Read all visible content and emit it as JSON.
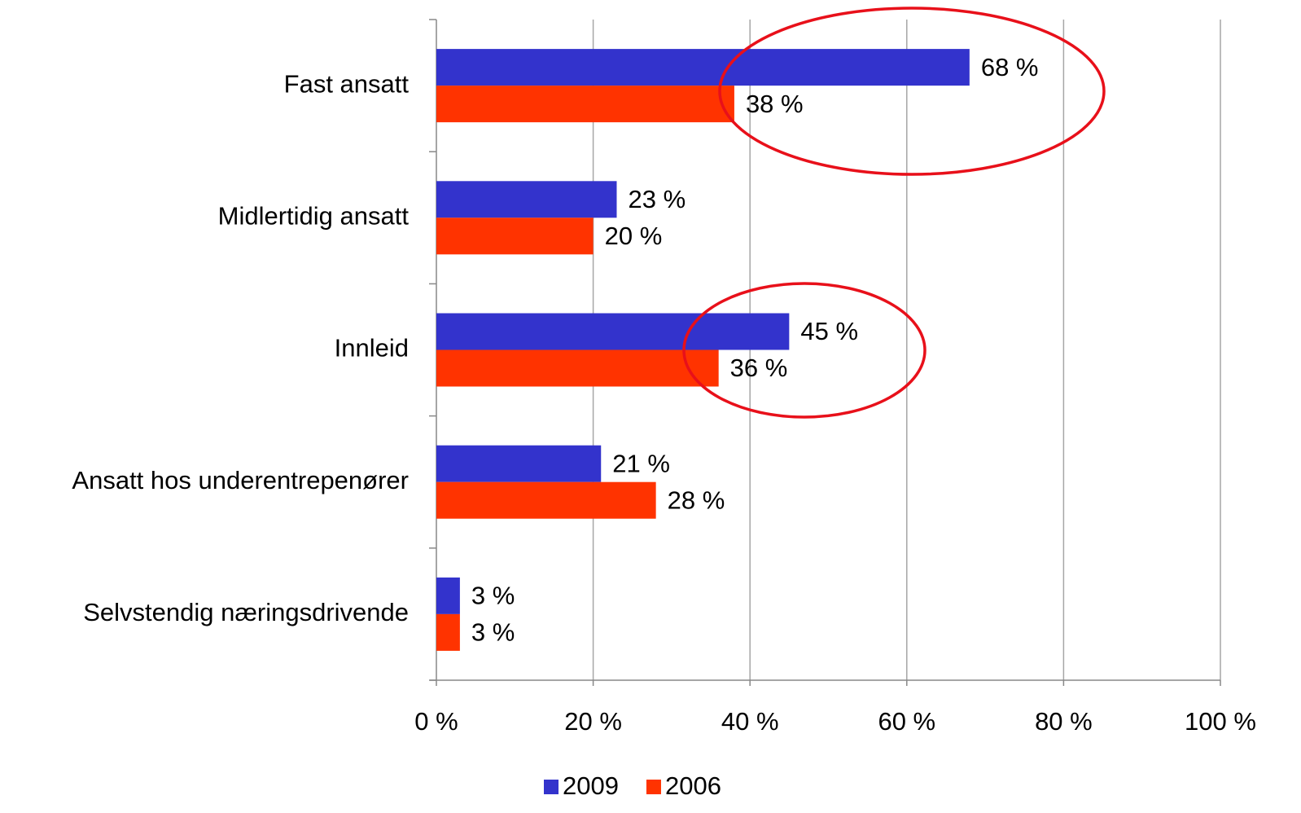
{
  "chart_data": {
    "type": "bar",
    "orientation": "horizontal",
    "categories": [
      "Fast ansatt",
      "Midlertidig ansatt",
      "Innleid",
      "Ansatt hos underentrepenører",
      "Selvstendig næringsdrivende"
    ],
    "series": [
      {
        "name": "2009",
        "color": "#3333cc",
        "values": [
          68,
          23,
          45,
          21,
          3
        ],
        "value_labels": [
          "68 %",
          "23 %",
          "45 %",
          "21 %",
          "3 %"
        ]
      },
      {
        "name": "2006",
        "color": "#ff3300",
        "values": [
          38,
          20,
          36,
          28,
          3
        ],
        "value_labels": [
          "38 %",
          "20 %",
          "36 %",
          "28 %",
          "3 %"
        ]
      }
    ],
    "xlim": [
      0,
      100
    ],
    "xticks": [
      {
        "value": 0,
        "label": "0 %"
      },
      {
        "value": 20,
        "label": "20 %"
      },
      {
        "value": 40,
        "label": "40 %"
      },
      {
        "value": 60,
        "label": "60 %"
      },
      {
        "value": 80,
        "label": "80 %"
      },
      {
        "value": 100,
        "label": "100 %"
      }
    ],
    "grid": true,
    "legend": "bottom"
  }
}
